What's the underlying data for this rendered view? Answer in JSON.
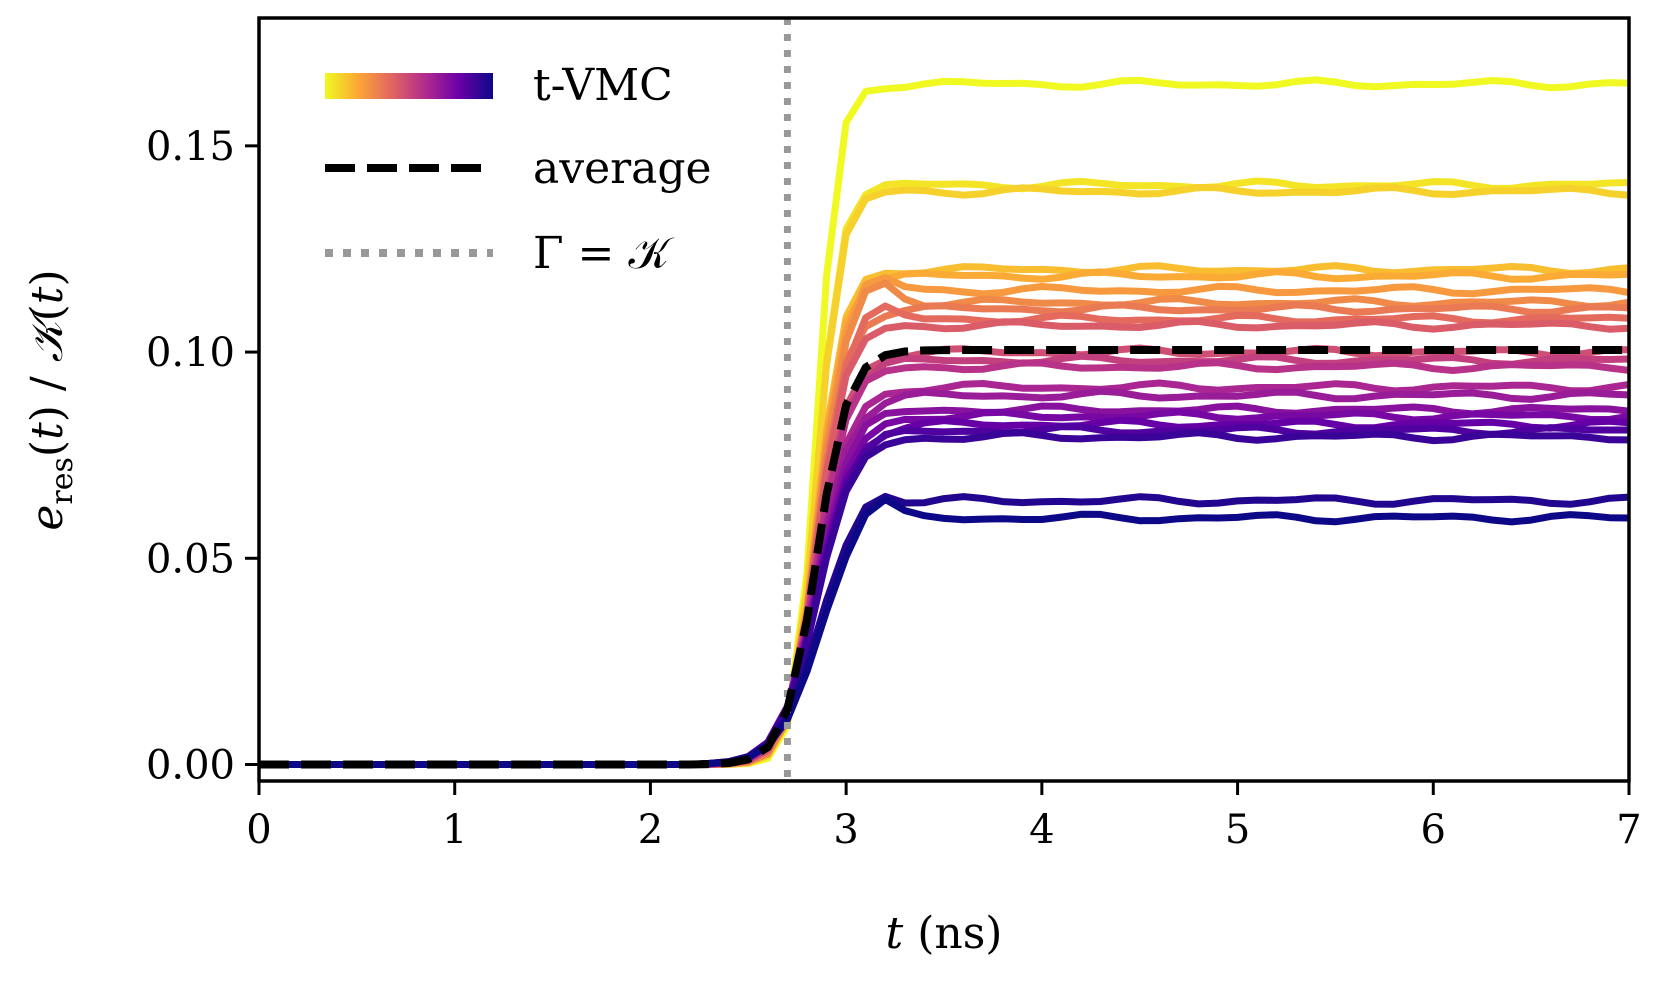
{
  "chart_data": {
    "type": "line",
    "xlabel": "t (ns)",
    "ylabel": "e_res(t) / K(t)",
    "xlim": [
      0,
      7
    ],
    "ylim": [
      -0.004,
      0.181
    ],
    "x_ticks": [
      "0",
      "1",
      "2",
      "3",
      "4",
      "5",
      "6",
      "7"
    ],
    "y_ticks": [
      "0.00",
      "0.05",
      "0.10",
      "0.15"
    ],
    "legend": {
      "placement": "top-left",
      "entries": [
        {
          "label": "t-VMC",
          "style": "gradient"
        },
        {
          "label": "average",
          "style": "dashed"
        },
        {
          "label": "Γ = 𝒦",
          "style": "dotted"
        }
      ]
    },
    "vertical_line": {
      "x": 2.7,
      "label": "Γ = 𝒦",
      "color": "#999999"
    },
    "colormap": "plasma",
    "colormap_stops": [
      "#f0f921",
      "#fca636",
      "#e16462",
      "#b12a90",
      "#6a00a8",
      "#0d0887"
    ],
    "series": [
      {
        "name": "t-VMC 1",
        "plateau": 0.165,
        "jump_width": 0.08,
        "overshoot": 0.0
      },
      {
        "name": "t-VMC 2",
        "plateau": 0.1405,
        "jump_width": 0.09,
        "overshoot": 0.0
      },
      {
        "name": "t-VMC 3",
        "plateau": 0.139,
        "jump_width": 0.09,
        "overshoot": 0.0
      },
      {
        "name": "t-VMC 4",
        "plateau": 0.12,
        "jump_width": 0.1,
        "overshoot": 0.0
      },
      {
        "name": "t-VMC 5",
        "plateau": 0.1185,
        "jump_width": 0.1,
        "overshoot": 0.0
      },
      {
        "name": "t-VMC 6",
        "plateau": 0.115,
        "jump_width": 0.1,
        "overshoot": 0.004
      },
      {
        "name": "t-VMC 7",
        "plateau": 0.112,
        "jump_width": 0.1,
        "overshoot": 0.006
      },
      {
        "name": "t-VMC 8",
        "plateau": 0.1105,
        "jump_width": 0.11,
        "overshoot": 0.0
      },
      {
        "name": "t-VMC 9",
        "plateau": 0.108,
        "jump_width": 0.11,
        "overshoot": 0.004
      },
      {
        "name": "t-VMC 10",
        "plateau": 0.1065,
        "jump_width": 0.11,
        "overshoot": 0.0
      },
      {
        "name": "t-VMC 11",
        "plateau": 0.1,
        "jump_width": 0.12,
        "overshoot": 0.0
      },
      {
        "name": "t-VMC 12",
        "plateau": 0.098,
        "jump_width": 0.12,
        "overshoot": 0.0
      },
      {
        "name": "t-VMC 13",
        "plateau": 0.0965,
        "jump_width": 0.12,
        "overshoot": 0.0
      },
      {
        "name": "t-VMC 14",
        "plateau": 0.0915,
        "jump_width": 0.13,
        "overshoot": 0.0
      },
      {
        "name": "t-VMC 15",
        "plateau": 0.0895,
        "jump_width": 0.13,
        "overshoot": 0.0
      },
      {
        "name": "t-VMC 16",
        "plateau": 0.086,
        "jump_width": 0.13,
        "overshoot": 0.0
      },
      {
        "name": "t-VMC 17",
        "plateau": 0.0845,
        "jump_width": 0.14,
        "overshoot": 0.0
      },
      {
        "name": "t-VMC 18",
        "plateau": 0.0825,
        "jump_width": 0.14,
        "overshoot": 0.0
      },
      {
        "name": "t-VMC 19",
        "plateau": 0.081,
        "jump_width": 0.14,
        "overshoot": 0.0
      },
      {
        "name": "t-VMC 20",
        "plateau": 0.0795,
        "jump_width": 0.14,
        "overshoot": 0.0
      },
      {
        "name": "t-VMC 21",
        "plateau": 0.064,
        "jump_width": 0.15,
        "overshoot": 0.004
      },
      {
        "name": "t-VMC 22",
        "plateau": 0.0598,
        "jump_width": 0.15,
        "overshoot": 0.007
      }
    ],
    "average": {
      "name": "average",
      "plateau": 0.1005,
      "color": "#000000"
    }
  }
}
